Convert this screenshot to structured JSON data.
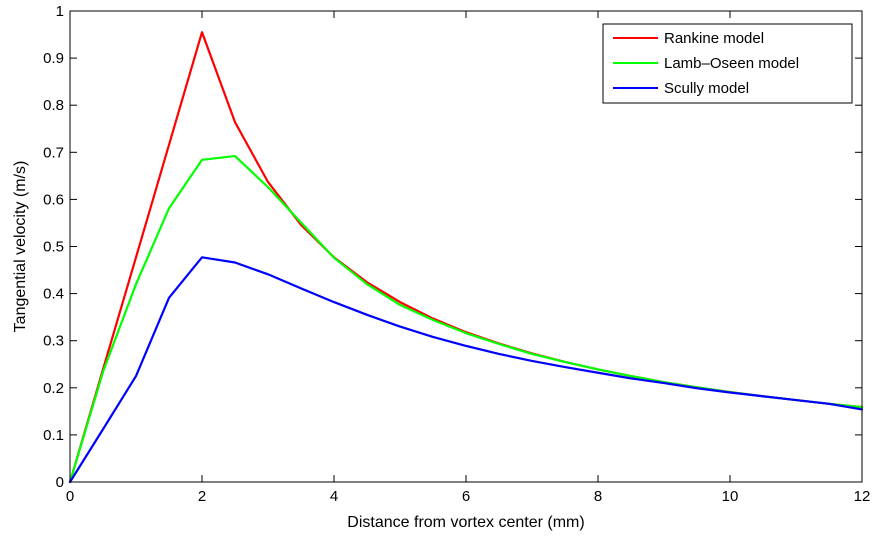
{
  "chart_data": {
    "type": "line",
    "xlabel": "Distance from vortex center (mm)",
    "ylabel": "Tangential velocity (m/s)",
    "xlim": [
      0,
      12
    ],
    "ylim": [
      0,
      1
    ],
    "xticks": [
      0,
      2,
      4,
      6,
      8,
      10,
      12
    ],
    "yticks": [
      0,
      0.1,
      0.2,
      0.3,
      0.4,
      0.5,
      0.6,
      0.7,
      0.8,
      0.9,
      1
    ],
    "grid": false,
    "legend_position": "top-right",
    "x": [
      0,
      0.5,
      1,
      1.5,
      2,
      2.5,
      3,
      3.5,
      4,
      4.5,
      5,
      5.5,
      6,
      6.5,
      7,
      7.5,
      8,
      8.5,
      9,
      9.5,
      10,
      10.5,
      11,
      11.5,
      12
    ],
    "series": [
      {
        "name": "Rankine model",
        "color": "#ff0000",
        "values": [
          0,
          0.239,
          0.477,
          0.716,
          0.955,
          0.764,
          0.637,
          0.546,
          0.477,
          0.424,
          0.382,
          0.347,
          0.318,
          0.294,
          0.273,
          0.255,
          0.239,
          0.225,
          0.212,
          0.201,
          0.191,
          0.182,
          0.174,
          0.166,
          0.159
        ]
      },
      {
        "name": "Lamb–Oseen model",
        "color": "#00ff00",
        "values": [
          0,
          0.234,
          0.42,
          0.581,
          0.684,
          0.692,
          0.626,
          0.551,
          0.476,
          0.42,
          0.376,
          0.344,
          0.316,
          0.293,
          0.272,
          0.255,
          0.239,
          0.225,
          0.212,
          0.201,
          0.191,
          0.182,
          0.174,
          0.166,
          0.159
        ]
      },
      {
        "name": "Scully model",
        "color": "#0000ff",
        "values": [
          0,
          0.112,
          0.225,
          0.391,
          0.477,
          0.466,
          0.441,
          0.411,
          0.382,
          0.355,
          0.33,
          0.308,
          0.289,
          0.272,
          0.257,
          0.244,
          0.232,
          0.22,
          0.21,
          0.199,
          0.19,
          0.182,
          0.174,
          0.166,
          0.154
        ]
      }
    ]
  }
}
